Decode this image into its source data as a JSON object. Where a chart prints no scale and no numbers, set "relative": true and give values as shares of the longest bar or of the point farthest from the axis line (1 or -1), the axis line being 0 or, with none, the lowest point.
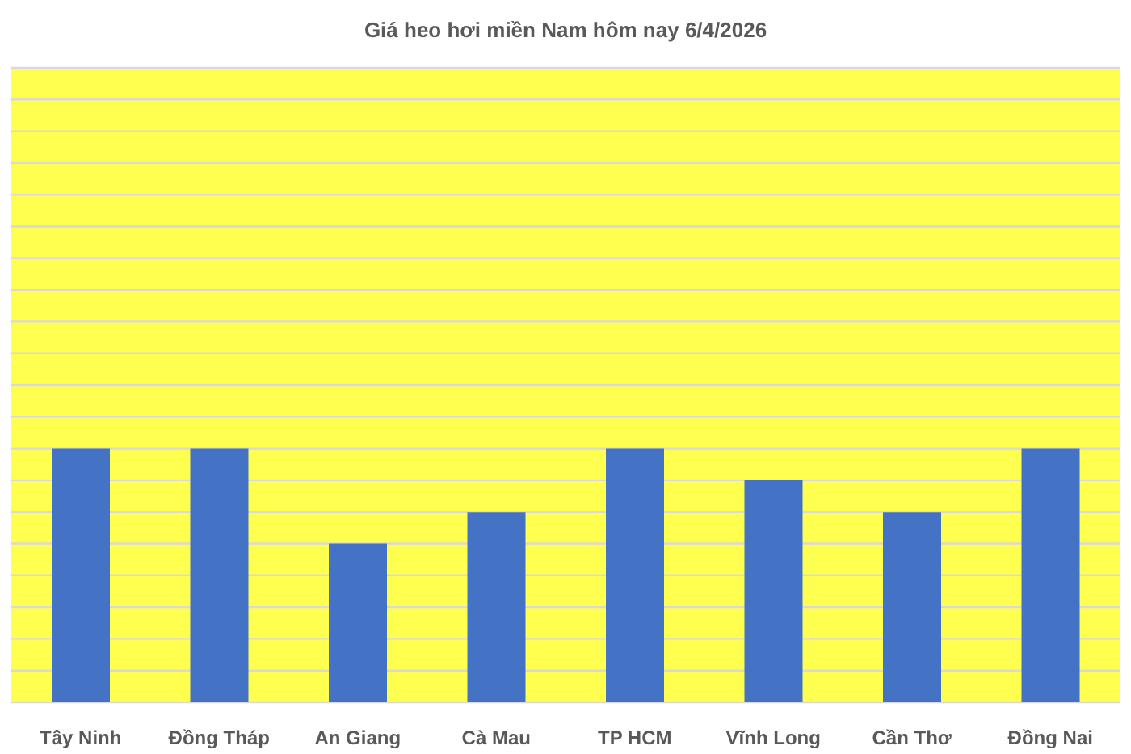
{
  "chart_data": {
    "type": "bar",
    "title": "Giá heo hơi miền Nam hôm nay 6/4/2026",
    "categories": [
      "Tây Ninh",
      "Đồng Tháp",
      "An Giang",
      "Cà Mau",
      "TP HCM",
      "Vĩnh Long",
      "Cần Thơ",
      "Đồng Nai"
    ],
    "values": [
      1,
      1,
      0.625,
      0.75,
      1,
      0.875,
      0.75,
      1
    ],
    "color": "#4472c4",
    "relative": true,
    "grid": "y"
  }
}
